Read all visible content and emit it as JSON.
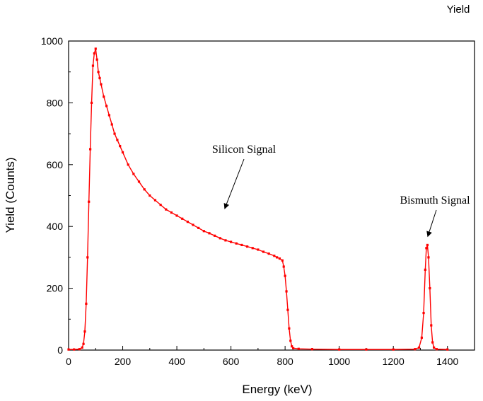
{
  "chart_data": {
    "type": "line",
    "title": "Yield",
    "xlabel": "Energy (keV)",
    "ylabel": "Yield (Counts)",
    "xlim": [
      0,
      1500
    ],
    "ylim": [
      0,
      1000
    ],
    "x_ticks": [
      0,
      200,
      400,
      600,
      800,
      1000,
      1200,
      1400
    ],
    "y_ticks": [
      0,
      200,
      400,
      600,
      800,
      1000
    ],
    "x_tick_labels": [
      "0",
      "200",
      "400",
      "600",
      "800",
      "1000",
      "1200",
      "1400"
    ],
    "y_tick_labels": [
      "0",
      "200",
      "400",
      "600",
      "800",
      "1000"
    ],
    "grid": false,
    "series": [
      {
        "color": "#ff0000",
        "marker": "square",
        "points": [
          [
            0,
            2
          ],
          [
            20,
            2
          ],
          [
            40,
            3
          ],
          [
            50,
            8
          ],
          [
            55,
            20
          ],
          [
            60,
            60
          ],
          [
            65,
            150
          ],
          [
            70,
            300
          ],
          [
            75,
            480
          ],
          [
            80,
            650
          ],
          [
            85,
            800
          ],
          [
            90,
            920
          ],
          [
            95,
            960
          ],
          [
            100,
            975
          ],
          [
            105,
            940
          ],
          [
            110,
            900
          ],
          [
            115,
            880
          ],
          [
            120,
            860
          ],
          [
            130,
            820
          ],
          [
            140,
            790
          ],
          [
            150,
            760
          ],
          [
            160,
            730
          ],
          [
            170,
            700
          ],
          [
            180,
            680
          ],
          [
            190,
            660
          ],
          [
            200,
            640
          ],
          [
            220,
            600
          ],
          [
            240,
            570
          ],
          [
            260,
            545
          ],
          [
            280,
            520
          ],
          [
            300,
            500
          ],
          [
            320,
            485
          ],
          [
            340,
            470
          ],
          [
            360,
            455
          ],
          [
            380,
            445
          ],
          [
            400,
            435
          ],
          [
            420,
            425
          ],
          [
            440,
            415
          ],
          [
            460,
            405
          ],
          [
            480,
            395
          ],
          [
            500,
            385
          ],
          [
            520,
            378
          ],
          [
            540,
            370
          ],
          [
            560,
            362
          ],
          [
            580,
            355
          ],
          [
            600,
            350
          ],
          [
            620,
            345
          ],
          [
            640,
            340
          ],
          [
            660,
            335
          ],
          [
            680,
            330
          ],
          [
            700,
            325
          ],
          [
            720,
            318
          ],
          [
            740,
            312
          ],
          [
            760,
            305
          ],
          [
            770,
            300
          ],
          [
            780,
            296
          ],
          [
            790,
            290
          ],
          [
            795,
            270
          ],
          [
            800,
            240
          ],
          [
            805,
            190
          ],
          [
            810,
            130
          ],
          [
            815,
            70
          ],
          [
            820,
            30
          ],
          [
            825,
            12
          ],
          [
            830,
            6
          ],
          [
            850,
            4
          ],
          [
            900,
            3
          ],
          [
            1000,
            2
          ],
          [
            1100,
            2
          ],
          [
            1200,
            2
          ],
          [
            1280,
            3
          ],
          [
            1295,
            8
          ],
          [
            1305,
            40
          ],
          [
            1312,
            120
          ],
          [
            1318,
            260
          ],
          [
            1322,
            330
          ],
          [
            1326,
            340
          ],
          [
            1330,
            300
          ],
          [
            1335,
            200
          ],
          [
            1340,
            80
          ],
          [
            1345,
            25
          ],
          [
            1350,
            8
          ],
          [
            1360,
            3
          ],
          [
            1400,
            2
          ]
        ]
      }
    ],
    "annotations": [
      {
        "text": "Silicon Signal",
        "arrow_to": [
          578,
          460
        ]
      },
      {
        "text": "Bismuth Signal",
        "arrow_to": [
          1328,
          370
        ]
      }
    ]
  }
}
